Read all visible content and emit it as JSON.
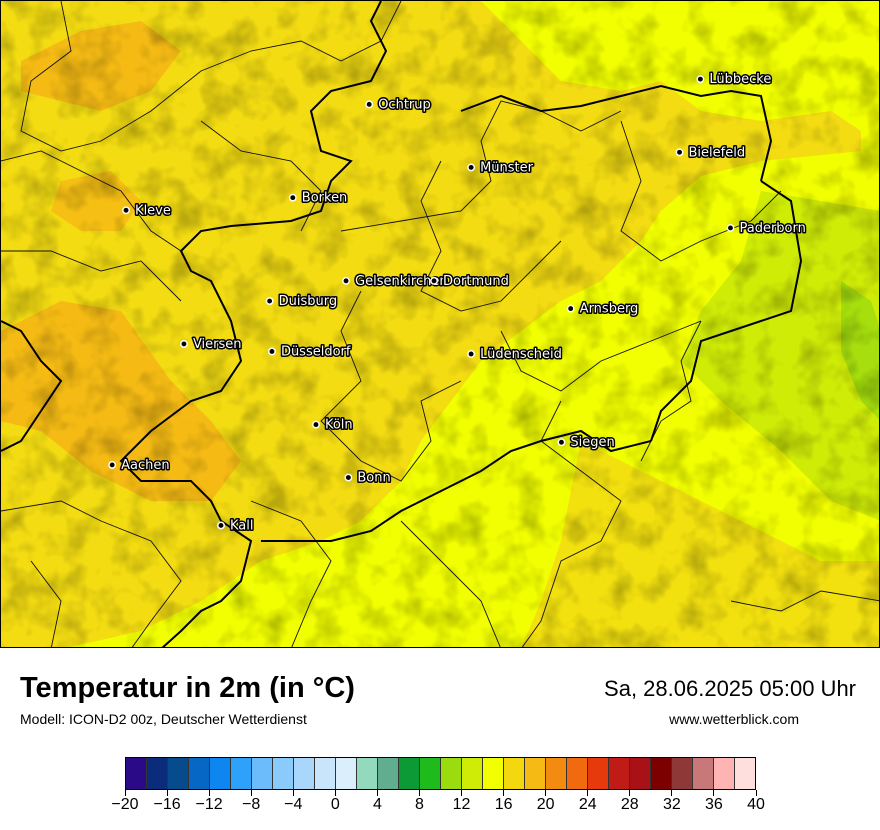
{
  "map": {
    "cities": [
      {
        "name": "Lübbecke",
        "lon": 8.62,
        "lat": 52.31
      },
      {
        "name": "Ochtrup",
        "lon": 7.19,
        "lat": 52.21
      },
      {
        "name": "Bielefeld",
        "lon": 8.53,
        "lat": 52.02
      },
      {
        "name": "Münster",
        "lon": 7.63,
        "lat": 51.96
      },
      {
        "name": "Borken",
        "lon": 6.86,
        "lat": 51.84
      },
      {
        "name": "Kleve",
        "lon": 6.14,
        "lat": 51.79
      },
      {
        "name": "Paderborn",
        "lon": 8.75,
        "lat": 51.72
      },
      {
        "name": "Gelsenkirchen",
        "lon": 7.09,
        "lat": 51.51
      },
      {
        "name": "Dortmund",
        "lon": 7.47,
        "lat": 51.51
      },
      {
        "name": "Duisburg",
        "lon": 6.76,
        "lat": 51.43
      },
      {
        "name": "Arnsberg",
        "lon": 8.06,
        "lat": 51.4
      },
      {
        "name": "Viersen",
        "lon": 6.39,
        "lat": 51.26
      },
      {
        "name": "Düsseldorf",
        "lon": 6.77,
        "lat": 51.23
      },
      {
        "name": "Lüdenscheid",
        "lon": 7.63,
        "lat": 51.22
      },
      {
        "name": "Köln",
        "lon": 6.96,
        "lat": 50.94
      },
      {
        "name": "Siegen",
        "lon": 8.02,
        "lat": 50.87
      },
      {
        "name": "Aachen",
        "lon": 6.08,
        "lat": 50.78
      },
      {
        "name": "Bonn",
        "lon": 7.1,
        "lat": 50.73
      },
      {
        "name": "Kall",
        "lon": 6.55,
        "lat": 50.54
      }
    ]
  },
  "footer": {
    "title": "Temperatur in 2m (in °C)",
    "subtitle": "Modell: ICON-D2 00z, Deutscher Wetterdienst",
    "datetime": "Sa, 28.06.2025 05:00 Uhr",
    "website": "www.wetterblick.com"
  },
  "legend": {
    "min": -20,
    "max": 40,
    "colors": [
      "#2a0a86",
      "#0b2c7a",
      "#064b8c",
      "#0668c4",
      "#0d86ef",
      "#2ea2fb",
      "#6cbcfb",
      "#8bcbfc",
      "#a9d7fb",
      "#c8e5fc",
      "#daeefc",
      "#93d9bd",
      "#61ad8f",
      "#0b9a36",
      "#1fba1b",
      "#9bdc0f",
      "#cfec07",
      "#f2ff00",
      "#f3d810",
      "#f5bb14",
      "#f28b10",
      "#f26a10",
      "#e63a0d",
      "#c01b17",
      "#a81115",
      "#7c0000",
      "#8f3838",
      "#c87878",
      "#ffb4b4",
      "#ffdede"
    ],
    "tick_labels": [
      "−20",
      "−16",
      "−12",
      "−8",
      "−4",
      "0",
      "4",
      "8",
      "12",
      "16",
      "20",
      "24",
      "28",
      "32",
      "36",
      "40"
    ],
    "tick_values": [
      -20,
      -16,
      -12,
      -8,
      -4,
      0,
      4,
      8,
      12,
      16,
      20,
      24,
      28,
      32,
      36,
      40
    ]
  }
}
